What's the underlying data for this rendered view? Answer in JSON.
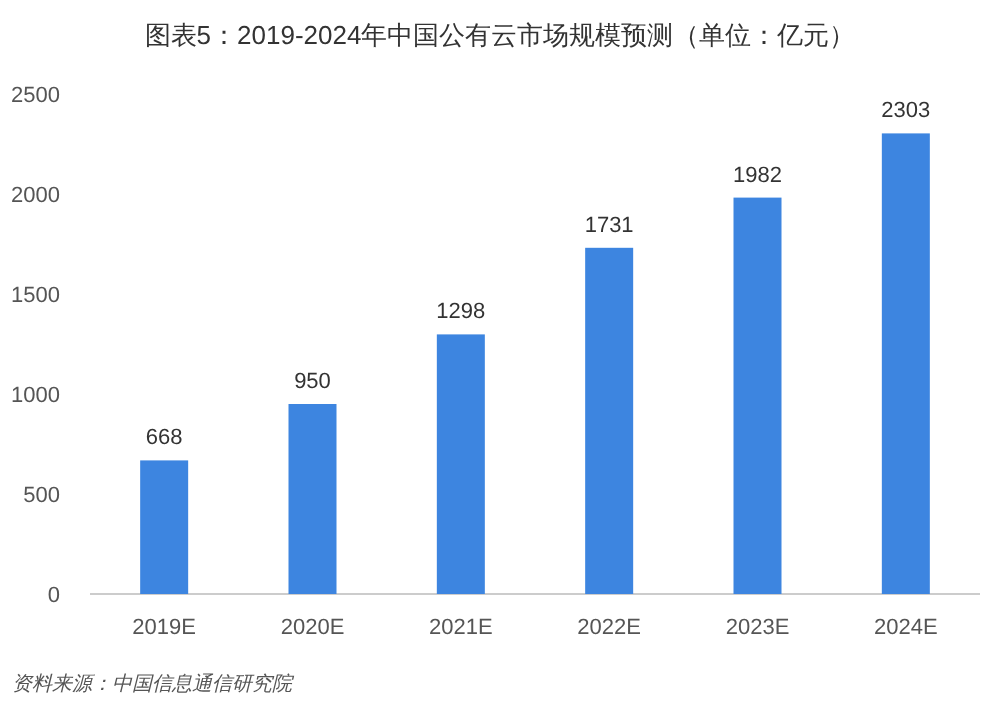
{
  "chart_data": {
    "type": "bar",
    "title": "图表5：2019-2024年中国公有云市场规模预测（单位：亿元）",
    "categories": [
      "2019E",
      "2020E",
      "2021E",
      "2022E",
      "2023E",
      "2024E"
    ],
    "values": [
      668,
      950,
      1298,
      1731,
      1982,
      2303
    ],
    "color": "#3d85e0",
    "ylim": [
      0,
      2500
    ],
    "yticks": [
      0,
      500,
      1000,
      1500,
      2000,
      2500
    ],
    "data_labels": true,
    "annotations": [
      "资料来源：中国信息通信研究院"
    ]
  }
}
